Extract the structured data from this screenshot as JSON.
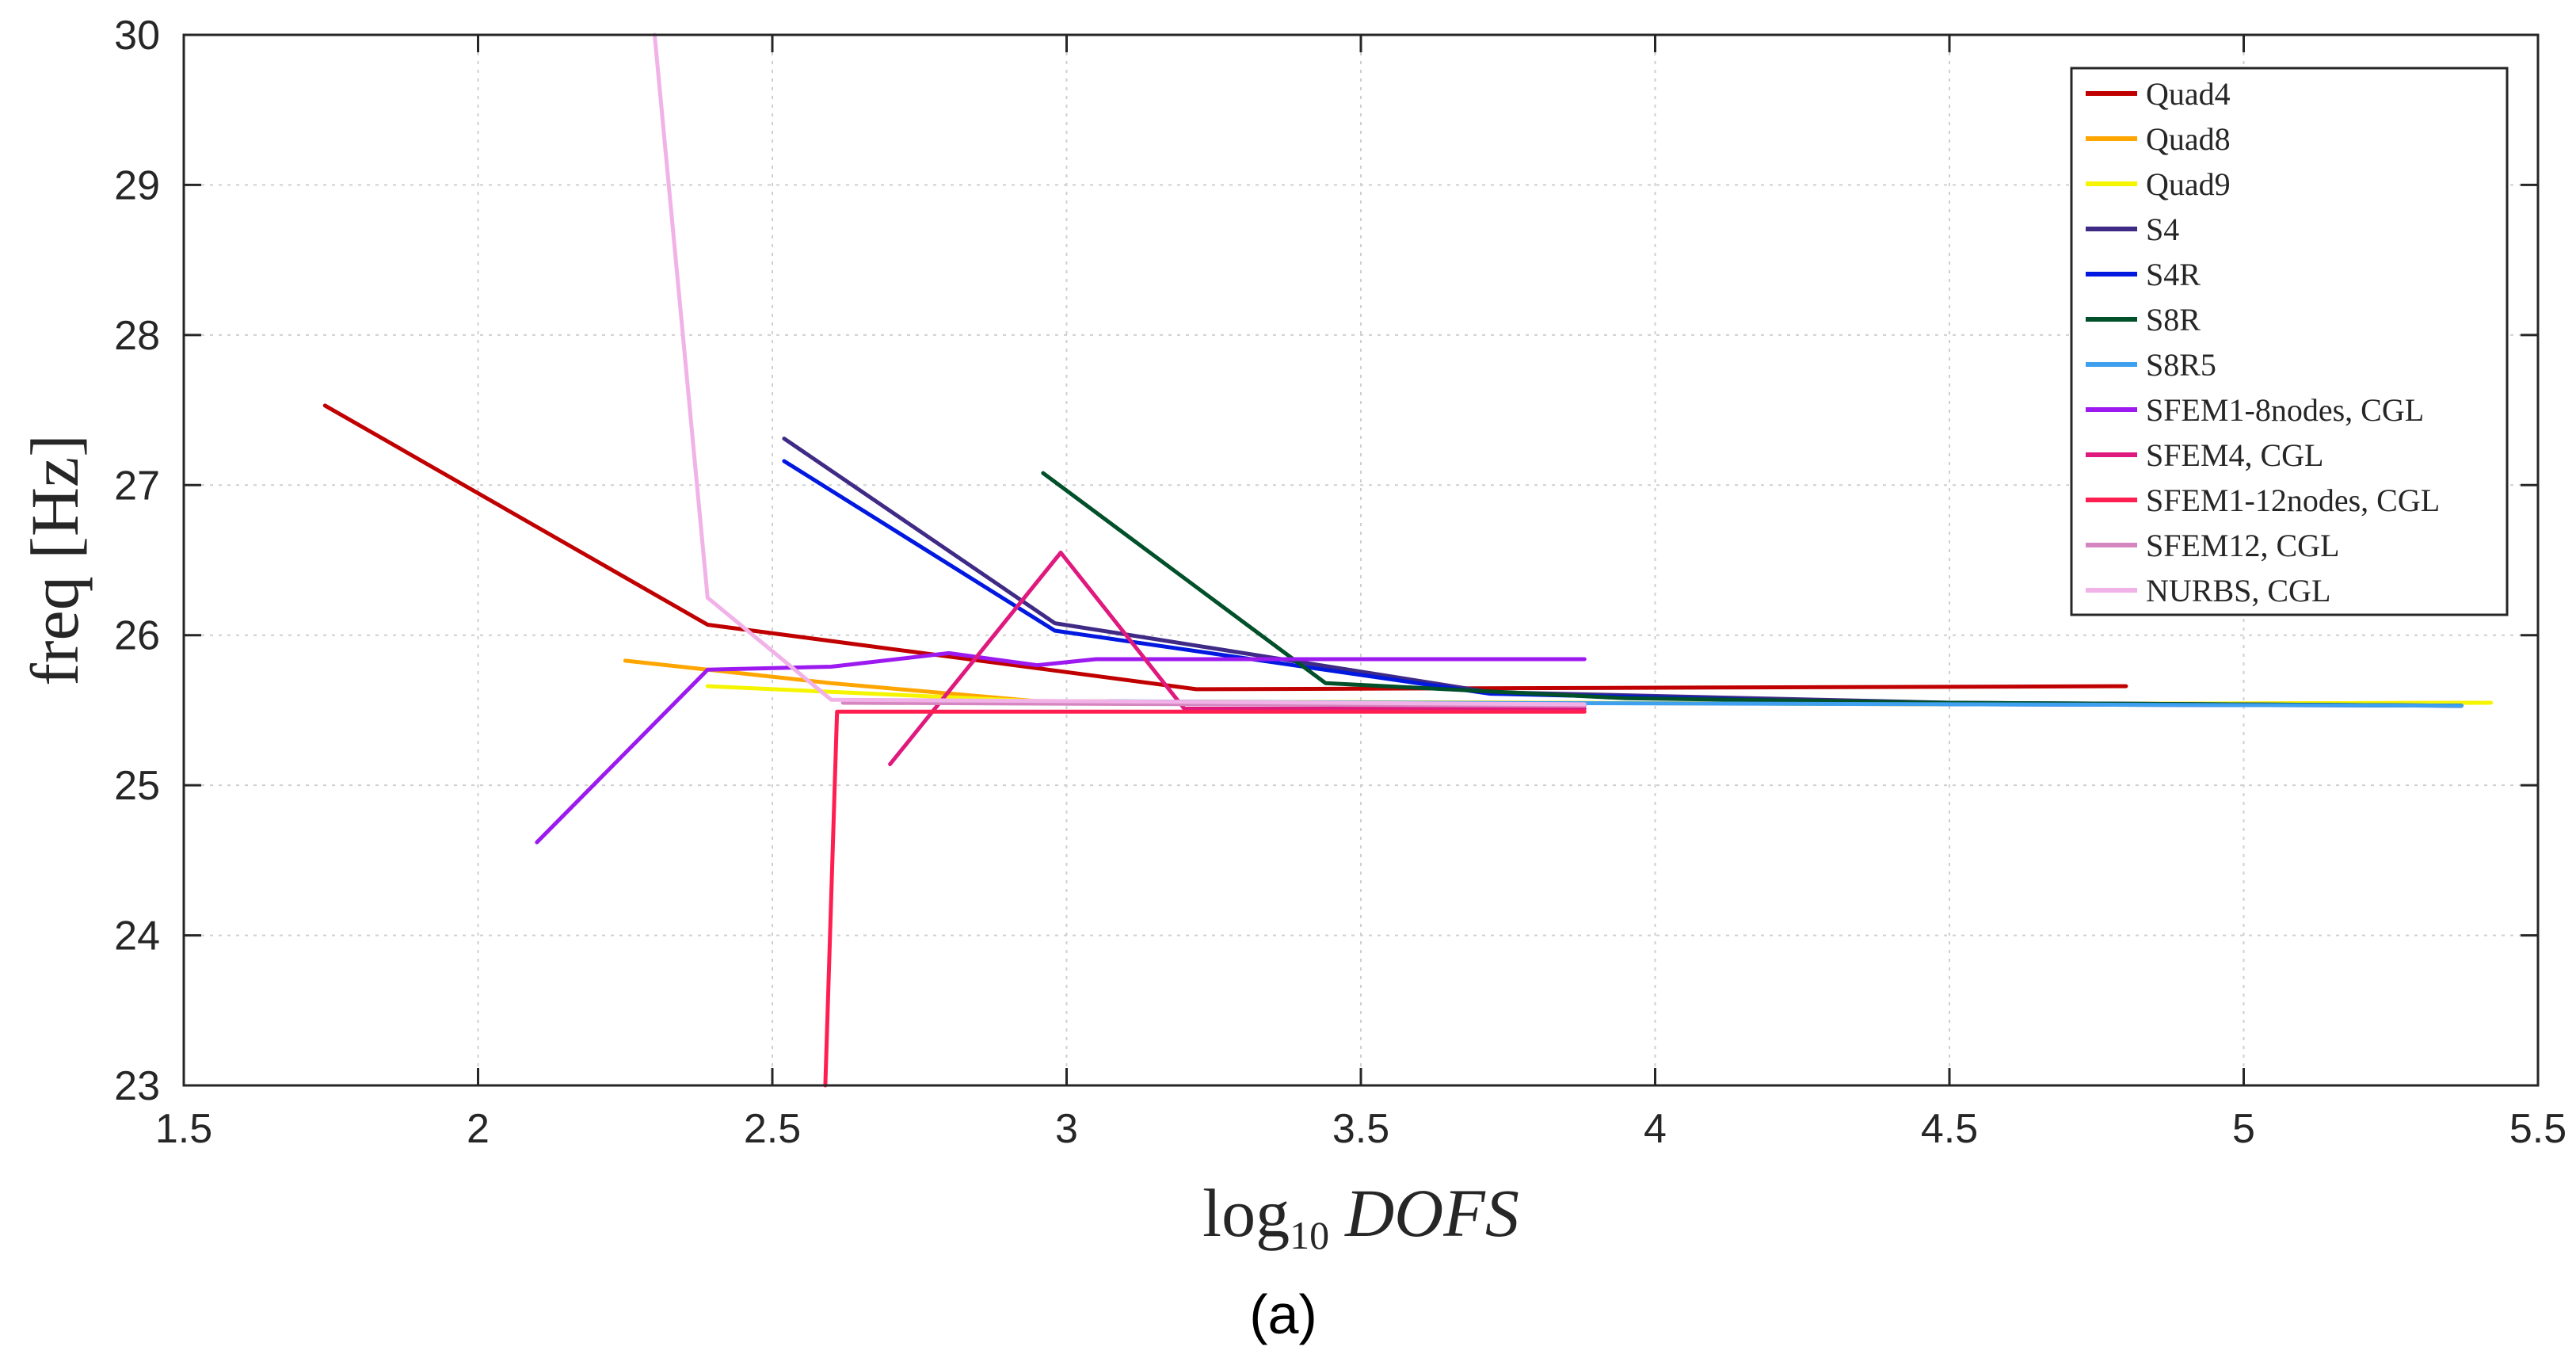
{
  "chart_data": {
    "type": "line",
    "title": "",
    "xlabel": {
      "prefix": "log",
      "subscript": "10",
      "var": "DOFS"
    },
    "ylabel": "freq [Hz]",
    "xlim": [
      1.5,
      5.5
    ],
    "ylim": [
      23,
      30
    ],
    "xticks": [
      "1.5",
      "2",
      "2.5",
      "3",
      "3.5",
      "4",
      "4.5",
      "5",
      "5.5"
    ],
    "yticks": [
      "23",
      "24",
      "25",
      "26",
      "27",
      "28",
      "29",
      "30"
    ],
    "grid": true,
    "legend_position": "top-right",
    "panel_label": "(a)",
    "series": [
      {
        "name": "Quad4",
        "color": "#c00000",
        "points": [
          [
            1.74,
            27.53
          ],
          [
            2.39,
            26.07
          ],
          [
            3.22,
            25.64
          ],
          [
            4.8,
            25.66
          ]
        ]
      },
      {
        "name": "Quad8",
        "color": "#ffa500",
        "points": [
          [
            2.25,
            25.83
          ],
          [
            2.6,
            25.68
          ],
          [
            2.95,
            25.56
          ],
          [
            3.8,
            25.55
          ],
          [
            4.5,
            25.54
          ],
          [
            5.4,
            25.55
          ]
        ]
      },
      {
        "name": "Quad9",
        "color": "#f5f500",
        "points": [
          [
            2.39,
            25.66
          ],
          [
            2.95,
            25.56
          ],
          [
            3.8,
            25.55
          ],
          [
            4.5,
            25.54
          ],
          [
            5.42,
            25.55
          ]
        ]
      },
      {
        "name": "S4",
        "color": "#3f2a86",
        "points": [
          [
            2.52,
            27.31
          ],
          [
            2.98,
            26.08
          ],
          [
            3.72,
            25.62
          ],
          [
            4.5,
            25.55
          ],
          [
            5.37,
            25.53
          ]
        ]
      },
      {
        "name": "S4R",
        "color": "#0018e0",
        "points": [
          [
            2.52,
            27.16
          ],
          [
            2.98,
            26.03
          ],
          [
            3.72,
            25.61
          ],
          [
            4.5,
            25.54
          ],
          [
            5.37,
            25.53
          ]
        ]
      },
      {
        "name": "S8R",
        "color": "#00502a",
        "points": [
          [
            2.96,
            27.08
          ],
          [
            3.44,
            25.68
          ],
          [
            3.95,
            25.58
          ],
          [
            4.5,
            25.55
          ],
          [
            5.37,
            25.53
          ]
        ]
      },
      {
        "name": "S8R5",
        "color": "#3fa0f0",
        "points": [
          [
            3.07,
            25.56
          ],
          [
            3.6,
            25.55
          ],
          [
            4.5,
            25.54
          ],
          [
            5.37,
            25.53
          ]
        ]
      },
      {
        "name": "SFEM1-8nodes, CGL",
        "color": "#9c1aef",
        "points": [
          [
            2.1,
            24.62
          ],
          [
            2.39,
            25.77
          ],
          [
            2.6,
            25.79
          ],
          [
            2.8,
            25.88
          ],
          [
            2.95,
            25.8
          ],
          [
            3.05,
            25.84
          ],
          [
            3.3,
            25.84
          ],
          [
            3.88,
            25.84
          ]
        ]
      },
      {
        "name": "SFEM4, CGL",
        "color": "#e0197e",
        "points": [
          [
            2.7,
            25.14
          ],
          [
            2.99,
            26.55
          ],
          [
            3.2,
            25.51
          ],
          [
            3.88,
            25.51
          ]
        ]
      },
      {
        "name": "SFEM1-12nodes, CGL",
        "color": "#ff1e50",
        "points": [
          [
            2.59,
            23.0
          ],
          [
            2.61,
            25.49
          ],
          [
            3.88,
            25.49
          ]
        ]
      },
      {
        "name": "SFEM12, CGL",
        "color": "#d585c0",
        "points": [
          [
            2.62,
            25.55
          ],
          [
            3.88,
            25.53
          ]
        ]
      },
      {
        "name": "NURBS, CGL",
        "color": "#f1b2e8",
        "points": [
          [
            2.3,
            30.0
          ],
          [
            2.39,
            26.25
          ],
          [
            2.6,
            25.57
          ],
          [
            3.88,
            25.54
          ]
        ]
      }
    ]
  }
}
